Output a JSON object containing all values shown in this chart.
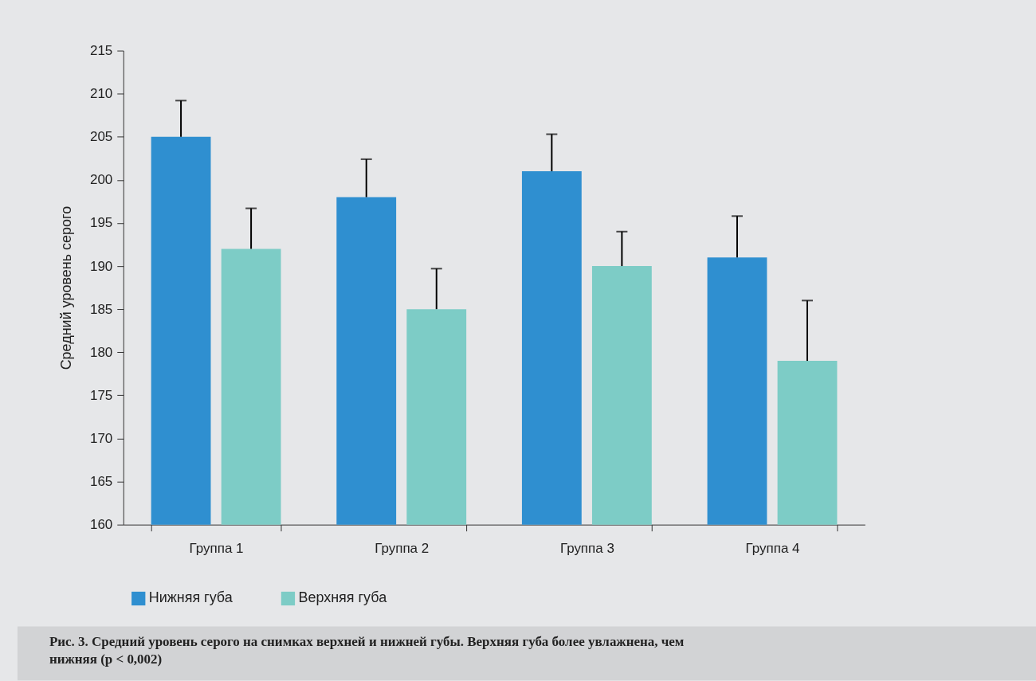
{
  "chart_data": {
    "type": "bar",
    "categories": [
      "Группа 1",
      "Группа 2",
      "Группа 3",
      "Группа 4"
    ],
    "ylabel": "Средний уровень серого",
    "series": [
      {
        "name": "Нижняя губа",
        "color": "#2f8fd0",
        "values": [
          205,
          198,
          201,
          191
        ],
        "errors": [
          [
            205,
            209.2
          ],
          [
            198,
            202.4
          ],
          [
            201,
            205.3
          ],
          [
            191,
            195.8
          ]
        ]
      },
      {
        "name": "Верхняя губа",
        "color": "#7dccc6",
        "values": [
          192,
          185,
          190,
          179
        ],
        "errors": [
          [
            192,
            196.7
          ],
          [
            185,
            189.7
          ],
          [
            190,
            194
          ],
          [
            179,
            186
          ]
        ]
      }
    ],
    "ylim": [
      160,
      215
    ],
    "yticks": [
      160,
      165,
      170,
      175,
      180,
      185,
      190,
      195,
      200,
      205,
      210,
      215
    ],
    "grid": false,
    "legend": "bottom left",
    "annotations": [
      "Рис. 3. Средний уровень серого на снимках верхней и нижней губы. Верхняя губа более увлажнена, чем нижняя (p < 0,002)"
    ]
  }
}
